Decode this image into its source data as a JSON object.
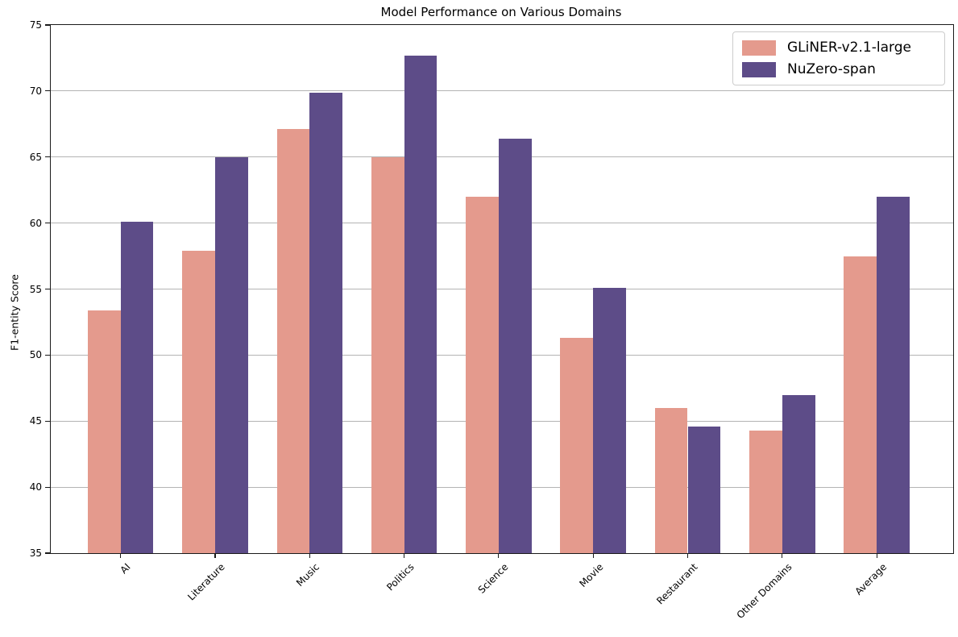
{
  "chart_data": {
    "type": "bar",
    "title": "Model Performance on Various Domains",
    "xlabel": "",
    "ylabel": "F1-entity Score",
    "categories": [
      "AI",
      "Literature",
      "Music",
      "Politics",
      "Science",
      "Movie",
      "Restaurant",
      "Other Domains",
      "Average"
    ],
    "series": [
      {
        "name": "GLiNER-v2.1-large",
        "color": "#e49a8d",
        "values": [
          53.4,
          57.9,
          67.1,
          65.0,
          62.0,
          51.3,
          46.0,
          44.3,
          57.5
        ]
      },
      {
        "name": "NuZero-span",
        "color": "#5d4c88",
        "values": [
          60.1,
          65.0,
          69.9,
          72.7,
          66.4,
          55.1,
          44.6,
          47.0,
          62.0
        ]
      }
    ],
    "ylim": [
      35,
      75
    ],
    "ytick_step": 5,
    "grid": "horizontal",
    "gridline_color": "#b4b4b4",
    "legend_position": "upper-right",
    "background_color": "#ffffff"
  }
}
